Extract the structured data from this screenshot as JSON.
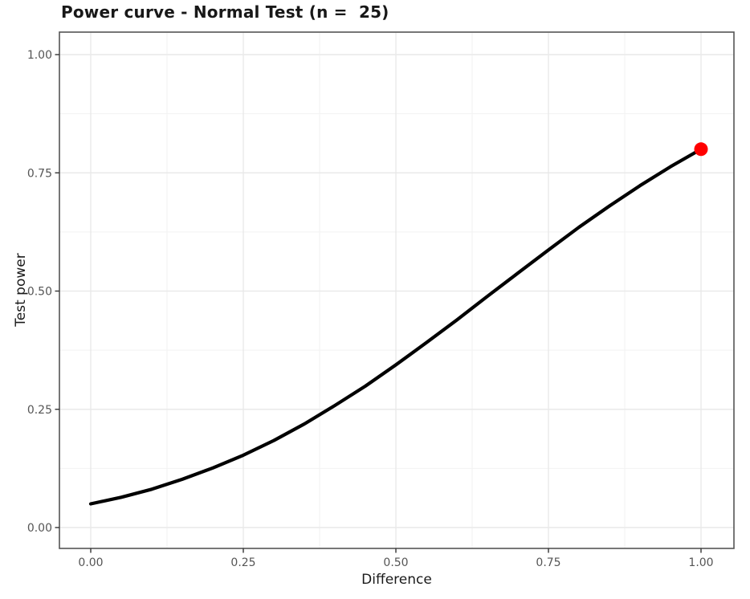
{
  "chart_data": {
    "type": "line",
    "title": "Power curve - Normal Test (n =  25)",
    "xlabel": "Difference",
    "ylabel": "Test power",
    "xlim": [
      0,
      1
    ],
    "ylim": [
      0,
      1
    ],
    "axis_expansion": 0.05,
    "grid": "major+minor",
    "legend": "none",
    "x_ticks": {
      "values": [
        0,
        0.25,
        0.5,
        0.75,
        1
      ],
      "labels": [
        "0.00",
        "0.25",
        "0.50",
        "0.75",
        "1.00"
      ]
    },
    "y_ticks": {
      "values": [
        0,
        0.25,
        0.5,
        0.75,
        1
      ],
      "labels": [
        "0.00",
        "0.25",
        "0.50",
        "0.75",
        "1.00"
      ]
    },
    "x_minor": [
      0.125,
      0.375,
      0.625,
      0.875
    ],
    "y_minor": [
      0.125,
      0.375,
      0.625,
      0.875
    ],
    "series": [
      {
        "name": "power-curve",
        "color": "#000000",
        "x": [
          0,
          0.05,
          0.1,
          0.15,
          0.2,
          0.25,
          0.3,
          0.35,
          0.4,
          0.45,
          0.5,
          0.55,
          0.6,
          0.65,
          0.7,
          0.75,
          0.8,
          0.85,
          0.9,
          0.95,
          1.0
        ],
        "y": [
          0.05,
          0.064,
          0.081,
          0.102,
          0.126,
          0.153,
          0.184,
          0.219,
          0.258,
          0.299,
          0.344,
          0.391,
          0.439,
          0.489,
          0.538,
          0.587,
          0.635,
          0.68,
          0.723,
          0.763,
          0.8
        ]
      }
    ],
    "highlight_point": {
      "x": 1.0,
      "y": 0.8,
      "color": "#ff0000"
    }
  },
  "colors": {
    "background": "#ffffff",
    "panel_background": "#ffffff",
    "grid_major": "#e9e9e9",
    "grid_minor": "#f2f2f2",
    "panel_border": "#555555",
    "tick_mark": "#333333",
    "axis_text": "#555555",
    "axis_title": "#1a1a1a",
    "plot_title": "#181818",
    "curve": "#000000",
    "point": "#ff0000"
  }
}
